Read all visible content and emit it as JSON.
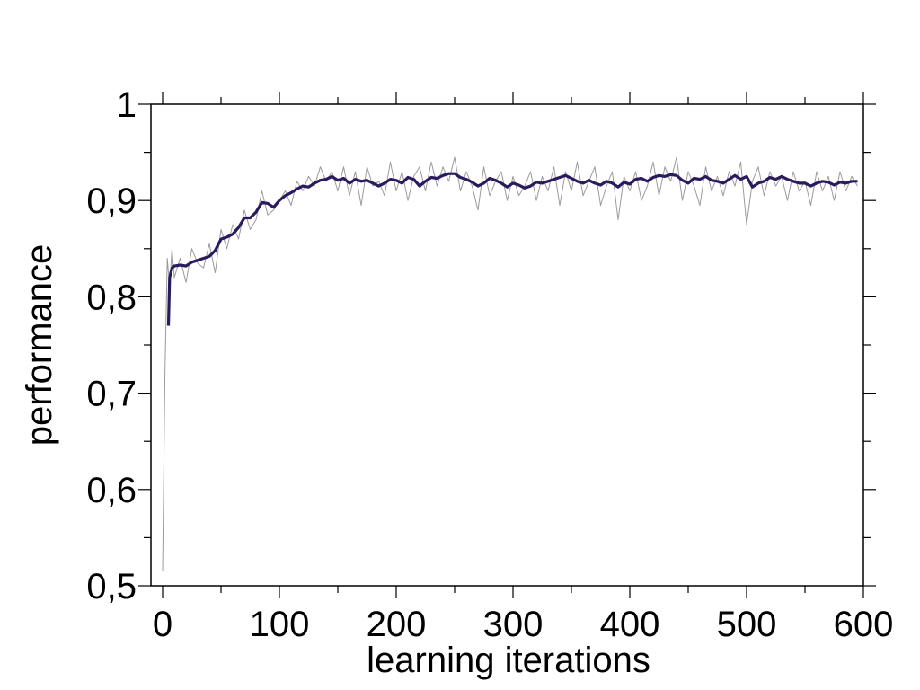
{
  "chart_data": {
    "type": "line",
    "xlabel": "learning iterations",
    "ylabel": "performance",
    "xlim": [
      -10,
      600
    ],
    "ylim": [
      0.5,
      1.0
    ],
    "x_ticks": [
      0,
      100,
      200,
      300,
      400,
      500,
      600
    ],
    "x_tick_labels": [
      "0",
      "100",
      "200",
      "300",
      "400",
      "500",
      "600"
    ],
    "y_ticks": [
      0.5,
      0.6,
      0.7,
      0.8,
      0.9,
      1.0
    ],
    "y_tick_labels": [
      "0,5",
      "0,6",
      "0,7",
      "0,8",
      "0,9",
      "1"
    ],
    "grid": false,
    "series": [
      {
        "style": "raw",
        "color": "#9a9a9a",
        "x": [
          0,
          2,
          4,
          6,
          8,
          10,
          15,
          20,
          25,
          30,
          35,
          40,
          45,
          50,
          55,
          60,
          65,
          70,
          75,
          80,
          85,
          90,
          95,
          100,
          105,
          110,
          115,
          120,
          125,
          130,
          135,
          140,
          145,
          150,
          155,
          160,
          165,
          170,
          175,
          180,
          185,
          190,
          195,
          200,
          205,
          210,
          215,
          220,
          225,
          230,
          235,
          240,
          245,
          250,
          255,
          260,
          265,
          270,
          275,
          280,
          285,
          290,
          295,
          300,
          305,
          310,
          315,
          320,
          325,
          330,
          335,
          340,
          345,
          350,
          355,
          360,
          365,
          370,
          375,
          380,
          385,
          390,
          395,
          400,
          405,
          410,
          415,
          420,
          425,
          430,
          435,
          440,
          445,
          450,
          455,
          460,
          465,
          470,
          475,
          480,
          485,
          490,
          495,
          500,
          505,
          510,
          515,
          520,
          525,
          530,
          535,
          540,
          545,
          550,
          555,
          560,
          565,
          570,
          575,
          580,
          585,
          590,
          595
        ],
        "y": [
          0.515,
          0.72,
          0.84,
          0.81,
          0.85,
          0.82,
          0.84,
          0.815,
          0.85,
          0.835,
          0.83,
          0.855,
          0.825,
          0.87,
          0.85,
          0.875,
          0.86,
          0.89,
          0.87,
          0.88,
          0.91,
          0.885,
          0.89,
          0.9,
          0.91,
          0.895,
          0.92,
          0.91,
          0.925,
          0.915,
          0.935,
          0.92,
          0.93,
          0.91,
          0.935,
          0.905,
          0.93,
          0.895,
          0.935,
          0.915,
          0.92,
          0.905,
          0.94,
          0.91,
          0.93,
          0.9,
          0.925,
          0.935,
          0.91,
          0.94,
          0.915,
          0.935,
          0.92,
          0.945,
          0.91,
          0.93,
          0.915,
          0.89,
          0.935,
          0.905,
          0.92,
          0.93,
          0.9,
          0.925,
          0.905,
          0.915,
          0.93,
          0.9,
          0.925,
          0.91,
          0.935,
          0.895,
          0.93,
          0.91,
          0.94,
          0.905,
          0.92,
          0.935,
          0.895,
          0.915,
          0.93,
          0.88,
          0.925,
          0.91,
          0.93,
          0.9,
          0.915,
          0.94,
          0.905,
          0.935,
          0.92,
          0.945,
          0.9,
          0.93,
          0.915,
          0.895,
          0.935,
          0.91,
          0.925,
          0.905,
          0.93,
          0.915,
          0.94,
          0.875,
          0.92,
          0.935,
          0.905,
          0.93,
          0.915,
          0.925,
          0.9,
          0.93,
          0.91,
          0.92,
          0.895,
          0.93,
          0.91,
          0.925,
          0.9,
          0.93,
          0.91,
          0.925,
          0.915
        ]
      },
      {
        "style": "smoothed",
        "color": "#2a1a5e",
        "x": [
          5,
          6,
          8,
          10,
          15,
          20,
          25,
          30,
          35,
          40,
          45,
          50,
          55,
          60,
          65,
          70,
          75,
          80,
          85,
          90,
          95,
          100,
          105,
          110,
          115,
          120,
          125,
          130,
          135,
          140,
          145,
          150,
          155,
          160,
          165,
          170,
          175,
          180,
          185,
          190,
          195,
          200,
          205,
          210,
          215,
          220,
          225,
          230,
          235,
          240,
          245,
          250,
          255,
          260,
          265,
          270,
          275,
          280,
          285,
          290,
          295,
          300,
          305,
          310,
          315,
          320,
          325,
          330,
          335,
          340,
          345,
          350,
          355,
          360,
          365,
          370,
          375,
          380,
          385,
          390,
          395,
          400,
          405,
          410,
          415,
          420,
          425,
          430,
          435,
          440,
          445,
          450,
          455,
          460,
          465,
          470,
          475,
          480,
          485,
          490,
          495,
          500,
          505,
          510,
          515,
          520,
          525,
          530,
          535,
          540,
          545,
          550,
          555,
          560,
          565,
          570,
          575,
          580,
          585,
          590,
          595
        ],
        "y": [
          0.77,
          0.82,
          0.83,
          0.832,
          0.833,
          0.832,
          0.836,
          0.838,
          0.84,
          0.842,
          0.848,
          0.86,
          0.862,
          0.865,
          0.872,
          0.882,
          0.882,
          0.888,
          0.898,
          0.897,
          0.893,
          0.9,
          0.905,
          0.908,
          0.912,
          0.915,
          0.914,
          0.918,
          0.921,
          0.922,
          0.925,
          0.921,
          0.923,
          0.918,
          0.922,
          0.92,
          0.921,
          0.918,
          0.915,
          0.918,
          0.922,
          0.921,
          0.918,
          0.924,
          0.922,
          0.915,
          0.92,
          0.924,
          0.923,
          0.926,
          0.928,
          0.928,
          0.924,
          0.922,
          0.919,
          0.915,
          0.918,
          0.923,
          0.921,
          0.918,
          0.914,
          0.918,
          0.916,
          0.913,
          0.915,
          0.919,
          0.918,
          0.92,
          0.922,
          0.924,
          0.926,
          0.923,
          0.92,
          0.918,
          0.921,
          0.918,
          0.916,
          0.92,
          0.918,
          0.914,
          0.919,
          0.917,
          0.922,
          0.923,
          0.92,
          0.924,
          0.926,
          0.925,
          0.927,
          0.926,
          0.921,
          0.918,
          0.923,
          0.922,
          0.925,
          0.921,
          0.92,
          0.918,
          0.922,
          0.926,
          0.922,
          0.925,
          0.914,
          0.918,
          0.92,
          0.924,
          0.922,
          0.925,
          0.922,
          0.92,
          0.918,
          0.918,
          0.915,
          0.918,
          0.92,
          0.919,
          0.916,
          0.919,
          0.918,
          0.92,
          0.92
        ]
      }
    ]
  }
}
